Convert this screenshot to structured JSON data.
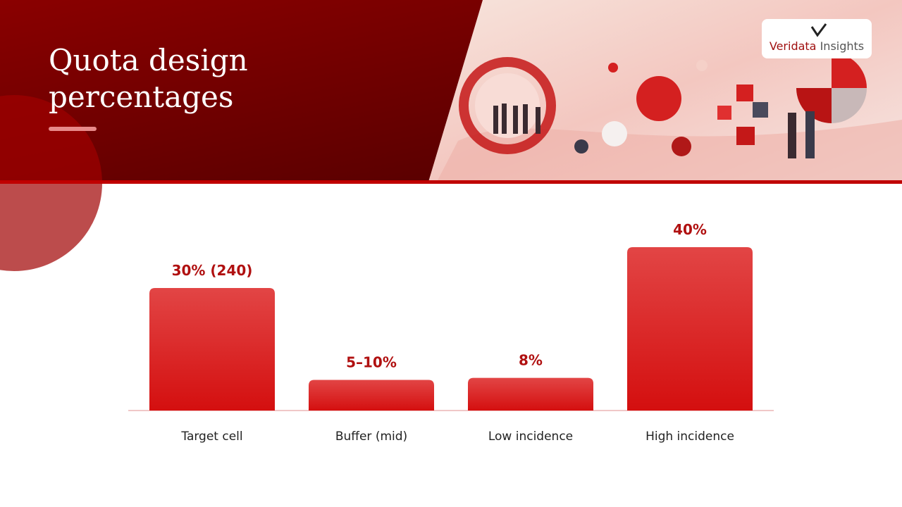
{
  "title": "Quota design percentages",
  "logo": {
    "primary": "Veridata",
    "secondary": "Insights"
  },
  "chart_data": {
    "type": "bar",
    "categories": [
      "Target cell",
      "Buffer (mid)",
      "Low incidence",
      "High incidence"
    ],
    "values": [
      30,
      7.5,
      8,
      40
    ],
    "value_labels": [
      "30% (240)",
      "5–10%",
      "8%",
      "40%"
    ],
    "color": "#d81414"
  }
}
